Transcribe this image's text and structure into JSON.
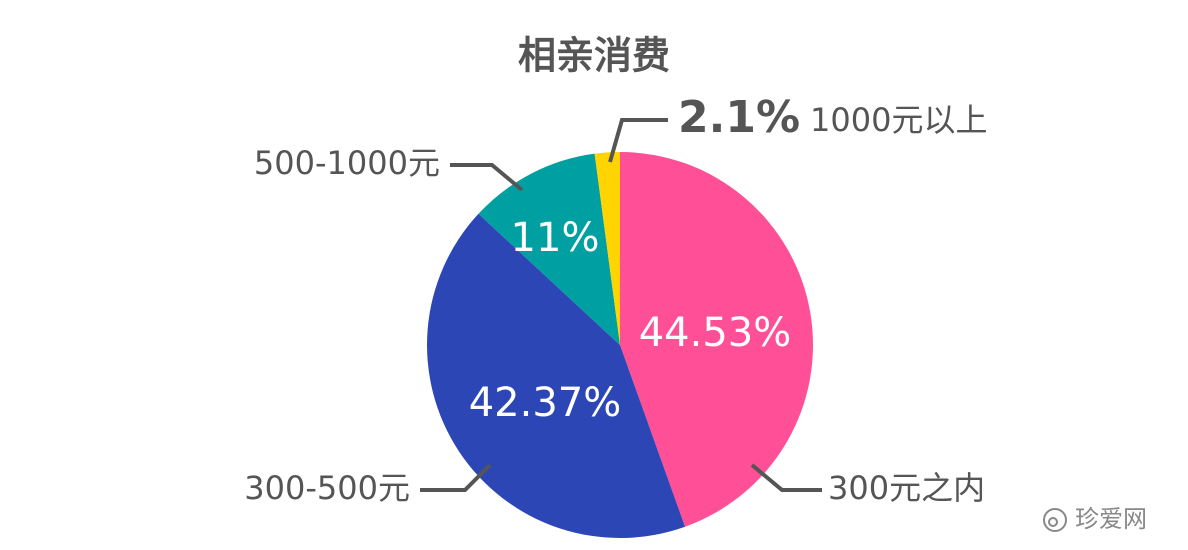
{
  "chart_data": {
    "type": "pie",
    "title": "相亲消费",
    "categories": [
      "300元之内",
      "300-500元",
      "500-1000元",
      "1000元以上"
    ],
    "values": [
      44.53,
      42.37,
      11,
      2.1
    ],
    "value_labels": [
      "44.53%",
      "42.37%",
      "11%",
      "2.1%"
    ],
    "colors": [
      "#ff4f96",
      "#2c47b5",
      "#00a0a2",
      "#ffd400"
    ]
  },
  "watermark": "珍爱网"
}
